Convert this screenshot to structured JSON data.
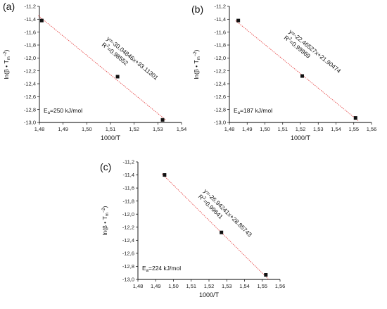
{
  "chart_data": [
    {
      "type": "scatter",
      "panel_label": "(a)",
      "xlabel": "1000/T",
      "ylabel_parts": {
        "main": "ln(β • T",
        "sub": "m",
        "sup": "−2",
        "close": ")"
      },
      "xlim": [
        1.48,
        1.54
      ],
      "ylim": [
        -13.0,
        -11.2
      ],
      "xticks": [
        "1,48",
        "1,49",
        "1,50",
        "1,51",
        "1,52",
        "1,53",
        "1,54"
      ],
      "yticks": [
        "-11,2",
        "-11,4",
        "-11,6",
        "-11,8",
        "-12,0",
        "-12,2",
        "-12,4",
        "-12,6",
        "-12,8",
        "-13,0"
      ],
      "points": [
        {
          "x": 1.481,
          "y": -11.42
        },
        {
          "x": 1.513,
          "y": -12.29
        },
        {
          "x": 1.532,
          "y": -12.96
        }
      ],
      "fit": {
        "slope": -30.04846,
        "intercept": 33.11301
      },
      "fit_color": "#e85050",
      "equation": "y=-30.04846x+33.11301",
      "r2_label": "R",
      "r2_sup": "2",
      "r2_value": "=0.98552",
      "ea_prefix": "E",
      "ea_sub": "a",
      "ea_value": "=250 kJ/mol"
    },
    {
      "type": "scatter",
      "panel_label": "(b)",
      "xlabel": "1000/T",
      "ylabel_parts": {
        "main": "ln(β • T",
        "sub": "m",
        "sup": "−2",
        "close": ")"
      },
      "xlim": [
        1.48,
        1.56
      ],
      "ylim": [
        -13.0,
        -11.2
      ],
      "xticks": [
        "1,48",
        "1,49",
        "1,50",
        "1,51",
        "1,52",
        "1,53",
        "1,54",
        "1,55",
        "1,56"
      ],
      "yticks": [
        "-11,2",
        "-11,4",
        "-11,6",
        "-11,8",
        "-12,0",
        "-12,2",
        "-12,4",
        "-12,6",
        "-12,8",
        "-13,0"
      ],
      "points": [
        {
          "x": 1.485,
          "y": -11.42
        },
        {
          "x": 1.521,
          "y": -12.28
        },
        {
          "x": 1.551,
          "y": -12.93
        }
      ],
      "fit": {
        "slope": -22.46527,
        "intercept": 21.90474
      },
      "fit_color": "#e85050",
      "equation": "y=-22.46527x+21.90474",
      "r2_label": "R",
      "r2_sup": "2",
      "r2_value": "=0.99969",
      "ea_prefix": "E",
      "ea_sub": "a",
      "ea_value": "=187 kJ/mol"
    },
    {
      "type": "scatter",
      "panel_label": "(c)",
      "xlabel": "1000/T",
      "ylabel_parts": {
        "main": "ln(β • T",
        "sub": "m",
        "sup": "−2",
        "close": ")"
      },
      "xlim": [
        1.48,
        1.56
      ],
      "ylim": [
        -13.0,
        -11.2
      ],
      "xticks": [
        "1,48",
        "1,49",
        "1,50",
        "1,51",
        "1,52",
        "1,53",
        "1,54",
        "1,55",
        "1,56"
      ],
      "yticks": [
        "-11,2",
        "-11,4",
        "-11,6",
        "-11,8",
        "-12,0",
        "-12,2",
        "-12,4",
        "-12,6",
        "-12,8",
        "-13,0"
      ],
      "points": [
        {
          "x": 1.495,
          "y": -11.4
        },
        {
          "x": 1.527,
          "y": -12.28
        },
        {
          "x": 1.552,
          "y": -12.93
        }
      ],
      "fit": {
        "slope": -26.94241,
        "intercept": 28.85743
      },
      "fit_color": "#e85050",
      "equation": "y=-26.94241x+28.85743",
      "r2_label": "R",
      "r2_sup": "2",
      "r2_value": "=0.99641",
      "ea_prefix": "E",
      "ea_sub": "a",
      "ea_value": "=224 kJ/mol"
    }
  ]
}
